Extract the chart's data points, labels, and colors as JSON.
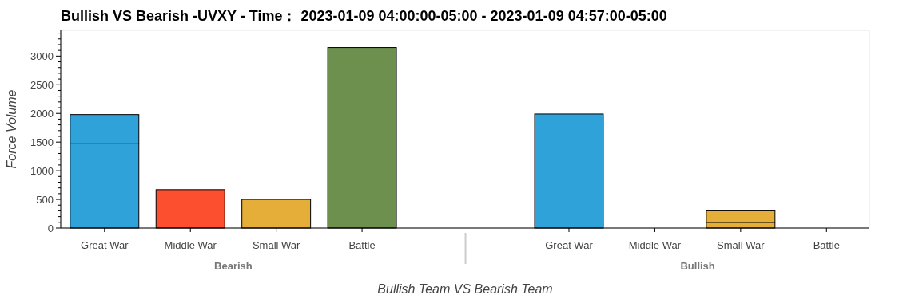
{
  "chart_data": {
    "type": "bar",
    "stacked": true,
    "title": "Bullish VS Bearish -UVXY - Time：  2023-01-09 04:00:00-05:00 - 2023-01-09 04:57:00-05:00",
    "xlabel": "Bullish Team VS Bearish Team",
    "ylabel": "Force Volume",
    "categories": [
      "Great War",
      "Middle War",
      "Small War",
      "Battle",
      "Great War",
      "Middle War",
      "Small War",
      "Battle"
    ],
    "annotations": [
      "Bearish",
      "Bullish"
    ],
    "series": [
      {
        "colors": [
          "#30a2da",
          "#fc4f30",
          "#e5ae38",
          "#6d904f",
          "#30a2da",
          "#fc4f30",
          "#e5ae38",
          "#6d904f"
        ],
        "values": [
          1470,
          670,
          500,
          3150,
          1990,
          0,
          100,
          0
        ]
      },
      {
        "colors": [
          "#30a2da",
          "#fc4f30",
          "#e5ae38",
          "#6d904f",
          "#30a2da",
          "#fc4f30",
          "#e5ae38",
          "#6d904f"
        ],
        "values": [
          510,
          0,
          0,
          0,
          0,
          0,
          200,
          0
        ]
      }
    ],
    "ylim": [
      0,
      3450
    ],
    "yticks": [
      0,
      {
        "value": 100,
        "label": null
      },
      {
        "value": 200,
        "label": null
      },
      {
        "value": 300,
        "label": null
      },
      {
        "value": 400,
        "label": null
      },
      500,
      {
        "value": 600,
        "label": null
      },
      {
        "value": 700,
        "label": null
      },
      {
        "value": 800,
        "label": null
      },
      {
        "value": 900,
        "label": null
      },
      1000,
      {
        "value": 1100,
        "label": null
      },
      {
        "value": 1200,
        "label": null
      },
      {
        "value": 1300,
        "label": null
      },
      {
        "value": 1400,
        "label": null
      },
      1500,
      {
        "value": 1600,
        "label": null
      },
      {
        "value": 1700,
        "label": null
      },
      {
        "value": 1800,
        "label": null
      },
      {
        "value": 1900,
        "label": null
      },
      2000,
      {
        "value": 2100,
        "label": null
      },
      {
        "value": 2200,
        "label": null
      },
      {
        "value": 2300,
        "label": null
      },
      {
        "value": 2400,
        "label": null
      },
      2500,
      {
        "value": 2600,
        "label": null
      },
      {
        "value": 2700,
        "label": null
      },
      {
        "value": 2800,
        "label": null
      },
      {
        "value": 2900,
        "label": null
      },
      3000,
      {
        "value": 3100,
        "label": null
      },
      {
        "value": 3200,
        "label": null
      },
      {
        "value": 3300,
        "label": null
      },
      {
        "value": 3400,
        "label": null
      }
    ],
    "grid": false
  }
}
